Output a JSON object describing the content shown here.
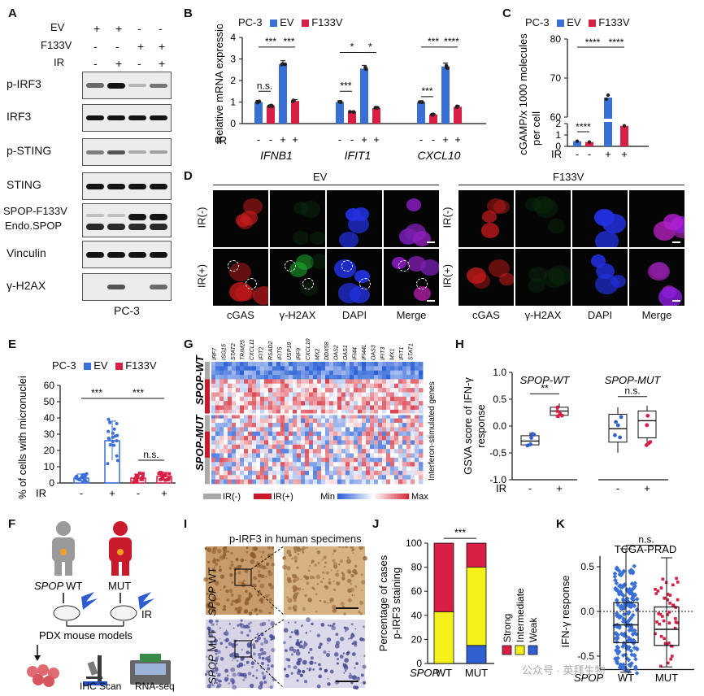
{
  "panels": {
    "A": {
      "letter": "A",
      "rows": [
        {
          "name": "EV",
          "signs": [
            "+",
            "+",
            "-",
            "-"
          ]
        },
        {
          "name": "F133V",
          "signs": [
            "-",
            "-",
            "+",
            "+"
          ]
        },
        {
          "name": "IR",
          "signs": [
            "-",
            "+",
            "-",
            "+"
          ]
        }
      ],
      "blots": [
        "p-IRF3",
        "IRF3",
        "p-STING",
        "STING",
        "SPOP-F133V",
        "Endo.SPOP",
        "Vinculin",
        "γ-H2AX"
      ],
      "footer": "PC-3"
    },
    "B": {
      "letter": "B",
      "cell_line": "PC-3",
      "legend": [
        "EV",
        "F133V"
      ],
      "ylabel": "Relative mRNA expression",
      "genes": [
        "IFNB1",
        "IFIT1",
        "CXCL10"
      ],
      "ir_label": "IR",
      "ir_signs": [
        "-",
        "-",
        "+",
        "+"
      ],
      "sig": [
        "n.s.",
        "***",
        "***",
        "***",
        "*",
        "*",
        "***",
        "***",
        "****"
      ]
    },
    "C": {
      "letter": "C",
      "cell_line": "PC-3",
      "legend": [
        "EV",
        "F133V"
      ],
      "ylabel_1": "cGAMP/x 1000 molecules",
      "ylabel_2": "per cell",
      "ir_label": "IR",
      "ir_signs": [
        "-",
        "-",
        "+",
        "+"
      ],
      "sig": [
        "****",
        "****",
        "****"
      ]
    },
    "D": {
      "letter": "D",
      "group_ev": "EV",
      "group_mut": "F133V",
      "rows": [
        "IR(-)",
        "IR(+)"
      ],
      "channels": [
        "cGAS",
        "γ-H2AX",
        "DAPI",
        "Merge"
      ]
    },
    "E": {
      "letter": "E",
      "cell_line": "PC-3",
      "legend": [
        "EV",
        "F133V"
      ],
      "ylabel": "% of cells with micronuclei",
      "ir_label": "IR",
      "ir_signs": [
        "-",
        "+",
        "-",
        "+"
      ],
      "sig": [
        "***",
        "***",
        "n.s."
      ]
    },
    "F": {
      "letter": "F",
      "gene": "SPOP",
      "wt": "WT",
      "mut": "MUT",
      "ir": "IR",
      "pdx": "PDX mouse models",
      "ihc": "IHC Scan",
      "rnaseq": "RNA-seq"
    },
    "G": {
      "letter": "G",
      "genes": [
        "IRF7",
        "ISG15",
        "STAT2",
        "TRIM25",
        "CXCL11",
        "IFIT2",
        "RSAD2",
        "IFIT5",
        "USP18",
        "IRF9",
        "CXCL10",
        "MX2",
        "DDX58",
        "OAS2",
        "OAS1",
        "IFI44",
        "IFI44L",
        "OAS3",
        "IFIT3",
        "MX1",
        "IFIT1",
        "STAT1"
      ],
      "row_wt": "SPOP-WT",
      "row_mut": "SPOP-MUT",
      "side": "Interferon-stimulated genes",
      "leg_ir_minus": "IR(-)",
      "leg_ir_plus": "IR(+)",
      "min": "Min",
      "max": "Max"
    },
    "H": {
      "letter": "H",
      "title_wt": "SPOP-WT",
      "title_mut": "SPOP-MUT",
      "ylabel_1": "GSVA score of IFN-γ",
      "ylabel_2": "response",
      "ir_label": "IR",
      "ir_signs": [
        "-",
        "+",
        "-",
        "+"
      ],
      "sig": [
        "**",
        "n.s."
      ]
    },
    "I": {
      "letter": "I",
      "title": "p-IRF3 in human specimens",
      "row_wt": "SPOP WT",
      "row_mut": "SPOP MUT"
    },
    "J": {
      "letter": "J",
      "ylabel_1": "Percentage of cases",
      "ylabel_2": "p-IRF3 staining",
      "gene": "SPOP",
      "categories": [
        "WT",
        "MUT"
      ],
      "legend": [
        "Strong",
        "Intermediate",
        "Weak"
      ],
      "sig": "***"
    },
    "K": {
      "letter": "K",
      "title": "TCGA-PRAD",
      "ylabel": "IFN-γ response",
      "gene": "SPOP",
      "categories": [
        "WT",
        "MUT"
      ],
      "sig": "n.s."
    }
  },
  "watermark": "公众号 · 英拜生物",
  "colors": {
    "ev": "#3a6fd8",
    "f133v": "#d81f45",
    "strong": "#d81f45",
    "intermediate": "#f3f01a",
    "weak": "#2f5fd1",
    "mic_red": "#c41a1a",
    "mic_green": "#1fae2e",
    "mic_blue": "#2230e0"
  },
  "chart_data": [
    {
      "panel": "B",
      "type": "bar",
      "categories": [
        "IFNB1",
        "IFIT1",
        "CXCL10"
      ],
      "series": [
        {
          "name": "EV",
          "condition": "IR-",
          "values": [
            1.0,
            1.0,
            1.0
          ]
        },
        {
          "name": "F133V",
          "condition": "IR-",
          "values": [
            0.82,
            0.55,
            0.42
          ]
        },
        {
          "name": "EV",
          "condition": "IR+",
          "values": [
            2.75,
            2.55,
            2.65
          ]
        },
        {
          "name": "F133V",
          "condition": "IR+",
          "values": [
            1.05,
            0.72,
            0.78
          ]
        }
      ],
      "ylabel": "Relative mRNA expression",
      "ylim": [
        0,
        4
      ],
      "yticks": [
        0,
        1,
        2,
        3,
        4
      ]
    },
    {
      "panel": "C",
      "type": "bar",
      "categories": [
        "EV IR-",
        "F133V IR-",
        "EV IR+",
        "F133V IR+"
      ],
      "values": [
        0.45,
        0.38,
        65,
        1.8
      ],
      "ylabel": "cGAMP/x 1000 molecules per cell",
      "ylim": [
        0,
        80
      ],
      "yticks": [
        0,
        1,
        2,
        60,
        70,
        80
      ],
      "axis_break": [
        2,
        60
      ]
    },
    {
      "panel": "E",
      "type": "bar",
      "categories": [
        "EV IR-",
        "EV IR+",
        "F133V IR-",
        "F133V IR+"
      ],
      "values": [
        3,
        26,
        3,
        4
      ],
      "ylabel": "% of cells with micronuclei",
      "ylim": [
        0,
        60
      ],
      "yticks": [
        0,
        10,
        20,
        30,
        40,
        50,
        60
      ]
    },
    {
      "panel": "H",
      "type": "box",
      "categories": [
        "SPOP-WT IR-",
        "SPOP-WT IR+",
        "SPOP-MUT IR-",
        "SPOP-MUT IR+"
      ],
      "medians": [
        -0.28,
        0.28,
        -0.05,
        0.1
      ],
      "q1": [
        -0.35,
        0.2,
        -0.3,
        -0.22
      ],
      "q3": [
        -0.18,
        0.35,
        0.22,
        0.28
      ],
      "min": [
        -0.38,
        0.15,
        -0.5,
        -0.38
      ],
      "max": [
        -0.12,
        0.42,
        0.35,
        0.38
      ],
      "ylim": [
        -1.0,
        1.0
      ],
      "yticks": [
        -1.0,
        -0.5,
        0.0,
        0.5,
        1.0
      ]
    },
    {
      "panel": "J",
      "type": "bar",
      "stacked": true,
      "categories": [
        "WT",
        "MUT"
      ],
      "series": [
        {
          "name": "Weak",
          "values": [
            0,
            15
          ]
        },
        {
          "name": "Intermediate",
          "values": [
            43,
            65
          ]
        },
        {
          "name": "Strong",
          "values": [
            57,
            20
          ]
        }
      ],
      "ylim": [
        0,
        100
      ],
      "yticks": [
        0,
        20,
        40,
        60,
        80,
        100
      ]
    },
    {
      "panel": "K",
      "type": "box",
      "categories": [
        "WT",
        "MUT"
      ],
      "medians": [
        -0.15,
        -0.2
      ],
      "q1": [
        -0.35,
        -0.38
      ],
      "q3": [
        0.1,
        0.05
      ],
      "min": [
        -0.68,
        -0.62
      ],
      "max": [
        0.7,
        0.6
      ],
      "ylim": [
        -0.5,
        0.5
      ],
      "yticks": [
        -0.5,
        0.0,
        0.5
      ]
    }
  ]
}
